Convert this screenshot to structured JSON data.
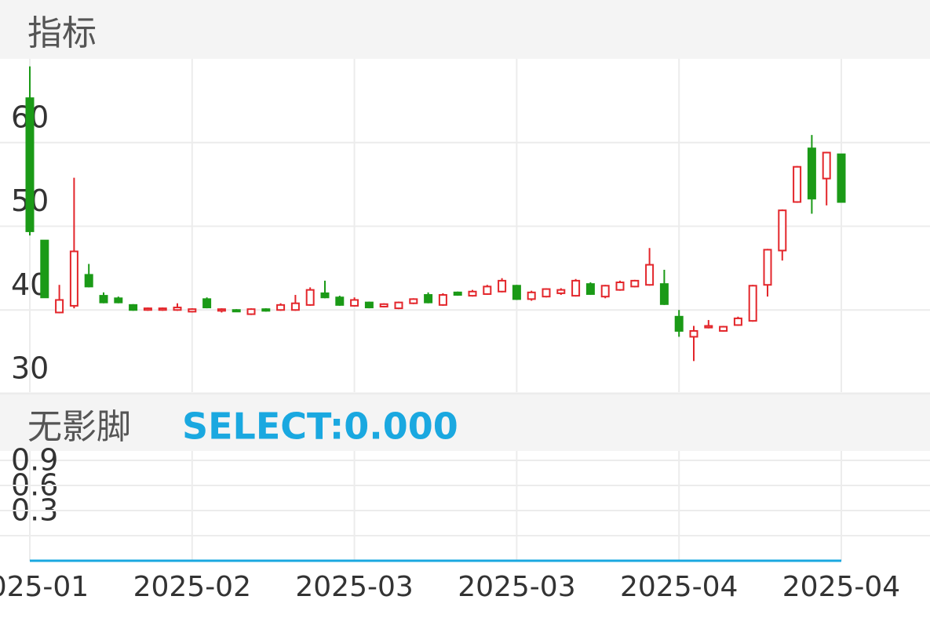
{
  "chart_data": [
    {
      "type": "candlestick",
      "title": "指标",
      "categories": [
        "2025-01",
        null,
        null,
        null,
        null,
        null,
        null,
        null,
        null,
        null,
        null,
        "2025-02",
        null,
        null,
        null,
        null,
        null,
        null,
        null,
        null,
        null,
        null,
        "2025-03",
        null,
        null,
        null,
        null,
        null,
        null,
        null,
        null,
        null,
        null,
        "2025-03",
        null,
        null,
        null,
        null,
        null,
        null,
        null,
        null,
        null,
        null,
        "2025-04",
        null,
        null,
        null,
        null,
        null,
        null,
        null,
        null,
        null,
        null,
        "2025-04"
      ],
      "open": [
        65.3,
        48.3,
        39.7,
        40.5,
        44.2,
        41.7,
        41.4,
        40.6,
        40.0,
        40.0,
        40.0,
        39.8,
        41.3,
        39.9,
        40.0,
        39.5,
        40.1,
        40.0,
        40.0,
        40.6,
        42.0,
        41.5,
        40.5,
        40.9,
        40.4,
        40.2,
        40.8,
        41.8,
        40.6,
        42.1,
        41.7,
        41.9,
        42.2,
        42.9,
        41.3,
        41.6,
        42.0,
        41.7,
        43.1,
        41.6,
        42.4,
        42.8,
        43.0,
        43.1,
        39.2,
        36.8,
        37.9,
        37.5,
        38.2,
        38.7,
        43.0,
        47.1,
        52.9,
        59.3,
        55.7,
        58.6
      ],
      "high": [
        69.1,
        48.3,
        43.0,
        55.8,
        45.5,
        42.1,
        41.6,
        40.7,
        40.3,
        40.3,
        40.8,
        40.2,
        41.5,
        40.2,
        40.1,
        40.2,
        40.2,
        40.8,
        41.8,
        42.7,
        43.5,
        41.7,
        41.5,
        41.0,
        40.8,
        41.0,
        41.4,
        42.1,
        42.0,
        42.2,
        42.4,
        43.0,
        43.8,
        43.0,
        42.3,
        42.6,
        42.6,
        43.7,
        43.3,
        43.0,
        43.5,
        43.6,
        47.4,
        44.8,
        40.0,
        38.1,
        38.8,
        38.1,
        39.2,
        43.0,
        47.3,
        52.0,
        57.2,
        60.9,
        58.9,
        58.6
      ],
      "low": [
        48.9,
        41.5,
        39.6,
        40.2,
        42.7,
        40.8,
        40.8,
        39.9,
        39.9,
        39.9,
        39.9,
        39.7,
        40.2,
        39.7,
        39.8,
        39.4,
        39.8,
        39.9,
        39.9,
        40.5,
        41.4,
        40.5,
        40.4,
        40.2,
        40.3,
        40.1,
        40.7,
        40.8,
        40.5,
        41.7,
        41.6,
        41.8,
        42.1,
        41.2,
        41.1,
        41.5,
        41.8,
        41.6,
        41.8,
        41.4,
        42.3,
        42.7,
        42.9,
        40.6,
        36.8,
        33.9,
        37.8,
        37.4,
        38.1,
        38.6,
        41.6,
        45.9,
        52.8,
        51.5,
        52.5,
        52.9
      ],
      "close": [
        49.4,
        41.5,
        41.2,
        47.0,
        42.8,
        40.9,
        40.9,
        40.0,
        40.2,
        40.2,
        40.3,
        40.1,
        40.3,
        40.1,
        39.9,
        40.1,
        39.9,
        40.6,
        40.8,
        42.4,
        41.5,
        40.6,
        41.2,
        40.3,
        40.7,
        40.9,
        41.3,
        40.9,
        41.8,
        41.8,
        42.2,
        42.8,
        43.5,
        41.3,
        42.1,
        42.5,
        42.4,
        43.5,
        41.9,
        42.9,
        43.3,
        43.5,
        45.4,
        40.7,
        37.5,
        37.5,
        38.1,
        38.0,
        39.0,
        42.9,
        47.2,
        51.9,
        57.1,
        53.3,
        58.8,
        52.9
      ],
      "up_color": "#e3262b",
      "down_color": "#1b9a17",
      "ylim": [
        30,
        70
      ],
      "yticks": [
        30,
        40,
        50,
        60
      ],
      "grid": true
    },
    {
      "type": "line",
      "title": "无影脚",
      "legend_label": "SELECT:0.000",
      "series": [
        {
          "name": "SELECT",
          "color": "#1aa8e0",
          "values": [
            0,
            0,
            0,
            0,
            0,
            0,
            0,
            0,
            0,
            0,
            0,
            0,
            0,
            0,
            0,
            0,
            0,
            0,
            0,
            0,
            0,
            0,
            0,
            0,
            0,
            0,
            0,
            0,
            0,
            0,
            0,
            0,
            0,
            0,
            0,
            0,
            0,
            0,
            0,
            0,
            0,
            0,
            0,
            0,
            0,
            0,
            0,
            0,
            0,
            0,
            0,
            0,
            0,
            0,
            0,
            0
          ]
        }
      ],
      "ylim": [
        0,
        1.2
      ],
      "yticks": [
        0.3,
        0.6,
        0.9
      ],
      "grid": true
    }
  ]
}
